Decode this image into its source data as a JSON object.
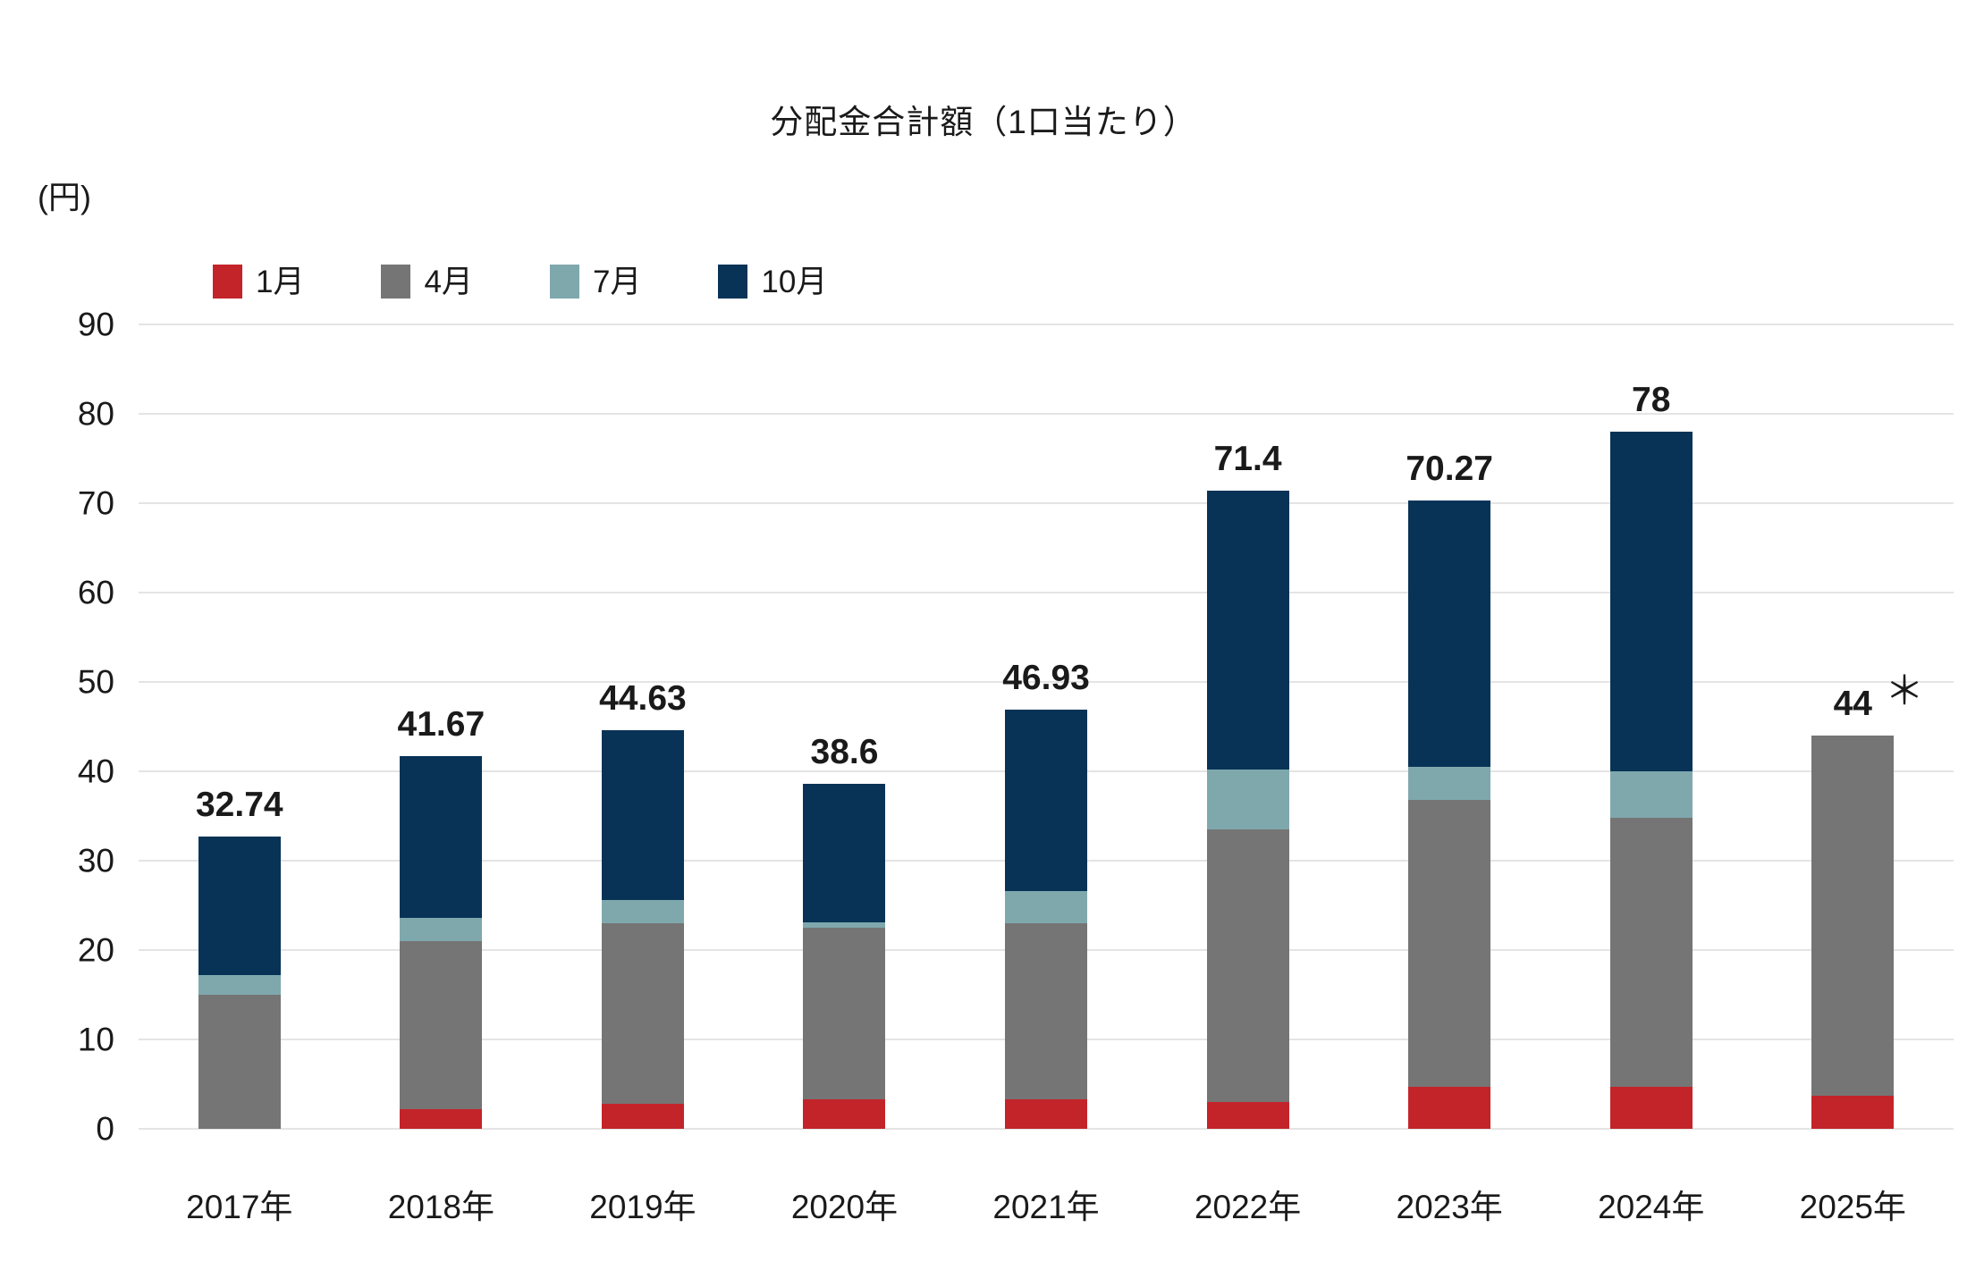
{
  "title": "分配金合計額（1口当たり）",
  "y_axis_unit": "(円)",
  "legend": [
    {
      "key": "jan",
      "label": "1月",
      "color": "#c3242a"
    },
    {
      "key": "apr",
      "label": "4月",
      "color": "#757575"
    },
    {
      "key": "jul",
      "label": "7月",
      "color": "#7fa8ad"
    },
    {
      "key": "oct",
      "label": "10月",
      "color": "#083357"
    }
  ],
  "chart_data": {
    "type": "bar",
    "subtype": "stacked",
    "title": "分配金合計額（1口当たり）",
    "ylabel": "(円)",
    "ylim": [
      0,
      90
    ],
    "yticks": [
      90,
      80,
      70,
      60,
      50,
      40,
      30,
      20,
      10,
      0
    ],
    "grid": true,
    "legend_position": "top-left",
    "categories": [
      "2017年",
      "2018年",
      "2019年",
      "2020年",
      "2021年",
      "2022年",
      "2023年",
      "2024年",
      "2025年"
    ],
    "series": [
      {
        "name": "1月",
        "key": "jan",
        "color": "#c3242a",
        "values": [
          0,
          2.2,
          2.8,
          3.3,
          3.3,
          3.0,
          4.7,
          4.7,
          3.7
        ]
      },
      {
        "name": "4月",
        "key": "apr",
        "color": "#757575",
        "values": [
          15.0,
          18.8,
          20.2,
          19.2,
          19.7,
          30.5,
          32.1,
          30.1,
          40.3
        ]
      },
      {
        "name": "7月",
        "key": "jul",
        "color": "#7fa8ad",
        "values": [
          2.2,
          2.6,
          2.6,
          0.6,
          3.6,
          6.7,
          3.7,
          5.2,
          0
        ]
      },
      {
        "name": "10月",
        "key": "oct",
        "color": "#083357",
        "values": [
          15.54,
          18.07,
          19.03,
          15.5,
          20.33,
          31.2,
          29.77,
          38.0,
          0
        ]
      }
    ],
    "totals": [
      "32.74",
      "41.67",
      "44.63",
      "38.6",
      "46.93",
      "71.4",
      "70.27",
      "78",
      "44"
    ],
    "total_annotations": [
      "",
      "",
      "",
      "",
      "",
      "",
      "",
      "",
      "＊"
    ]
  }
}
